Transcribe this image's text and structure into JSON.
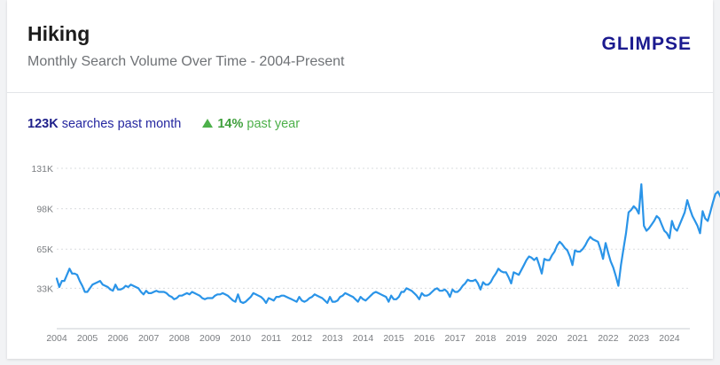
{
  "header": {
    "title": "Hiking",
    "subtitle": "Monthly Search Volume Over Time - 2004-Present",
    "logo": "GLIMPSE"
  },
  "stats": {
    "searches_value": "123K",
    "searches_label": "searches past month",
    "growth_value": "14%",
    "growth_label": "past year"
  },
  "colors": {
    "line": "#2a94e8",
    "grid": "#d9dcdf",
    "tick": "#7a7d81",
    "up": "#4db04a"
  },
  "chart_data": {
    "type": "line",
    "title": "Hiking",
    "subtitle": "Monthly Search Volume Over Time - 2004-Present",
    "xlabel": "",
    "ylabel": "",
    "x_ticks": [
      "2004",
      "2005",
      "2006",
      "2007",
      "2008",
      "2009",
      "2010",
      "2011",
      "2012",
      "2013",
      "2014",
      "2015",
      "2016",
      "2017",
      "2018",
      "2019",
      "2020",
      "2021",
      "2022",
      "2023",
      "2024"
    ],
    "y_ticks": [
      {
        "value": 33000,
        "label": "33K"
      },
      {
        "value": 65000,
        "label": "65K"
      },
      {
        "value": 98000,
        "label": "98K"
      },
      {
        "value": 131000,
        "label": "131K"
      }
    ],
    "ylim": [
      0,
      131000
    ],
    "xlim": [
      "2004-01",
      "2024-09"
    ],
    "grid": true,
    "start": "2004-01",
    "series": [
      {
        "name": "",
        "values": [
          41,
          34,
          39,
          39,
          44,
          49,
          45,
          45,
          44,
          39,
          35,
          30,
          30,
          33,
          36,
          37,
          38,
          39,
          36,
          35,
          34,
          32,
          31,
          36,
          32,
          32,
          33,
          35,
          34,
          36,
          35,
          34,
          33,
          30,
          28,
          31,
          29,
          29,
          30,
          31,
          30,
          30,
          30,
          29,
          27,
          26,
          24,
          25,
          27,
          27,
          28,
          29,
          28,
          30,
          29,
          28,
          27,
          25,
          24,
          25,
          25,
          25,
          27,
          28,
          28,
          29,
          28,
          27,
          25,
          23,
          22,
          28,
          22,
          21,
          22,
          24,
          26,
          29,
          28,
          27,
          26,
          24,
          21,
          25,
          24,
          23,
          26,
          26,
          27,
          27,
          26,
          25,
          24,
          23,
          22,
          26,
          23,
          22,
          23,
          25,
          26,
          28,
          27,
          26,
          25,
          23,
          21,
          26,
          22,
          22,
          23,
          26,
          27,
          29,
          28,
          27,
          26,
          24,
          22,
          26,
          24,
          23,
          25,
          27,
          29,
          30,
          29,
          28,
          27,
          26,
          22,
          27,
          24,
          24,
          26,
          30,
          30,
          33,
          32,
          31,
          29,
          27,
          24,
          29,
          27,
          27,
          28,
          30,
          32,
          33,
          31,
          31,
          32,
          30,
          26,
          32,
          30,
          30,
          32,
          35,
          37,
          40,
          39,
          39,
          40,
          37,
          32,
          38,
          36,
          36,
          38,
          42,
          45,
          49,
          47,
          46,
          46,
          42,
          37,
          46,
          45,
          44,
          48,
          52,
          56,
          59,
          58,
          56,
          58,
          52,
          45,
          57,
          56,
          56,
          60,
          63,
          68,
          71,
          69,
          66,
          64,
          59,
          52,
          64,
          63,
          63,
          65,
          68,
          72,
          75,
          73,
          72,
          71,
          65,
          57,
          70,
          62,
          55,
          50,
          43,
          35,
          52,
          65,
          78,
          95,
          97,
          100,
          98,
          94,
          118,
          84,
          80,
          82,
          85,
          88,
          92,
          90,
          85,
          80,
          78,
          74,
          88,
          82,
          80,
          85,
          90,
          95,
          105,
          98,
          92,
          88,
          84,
          78,
          96,
          90,
          88,
          95,
          103,
          110,
          112,
          108,
          102,
          100,
          98,
          95,
          112,
          108,
          105,
          110,
          118,
          125,
          123,
          120,
          118,
          116,
          125,
          128,
          126,
          124
        ]
      }
    ]
  }
}
